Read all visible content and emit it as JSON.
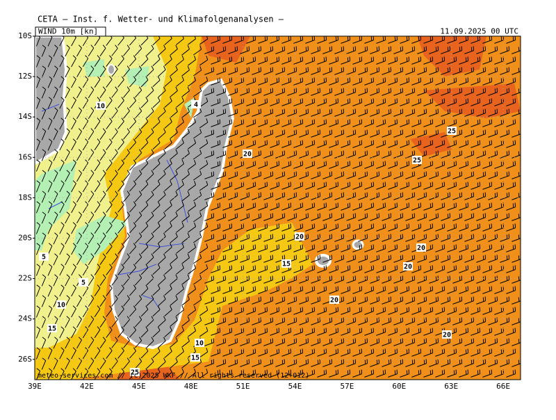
{
  "header": {
    "title": "CETA — Inst. f. Wetter- und Klimafolgenanalysen —",
    "field": "WIND 10m [kn]",
    "valid_time": "11.09.2025 00 UTC"
  },
  "map": {
    "lat_labels": [
      "10S",
      "12S",
      "14S",
      "16S",
      "18S",
      "20S",
      "22S",
      "24S",
      "26S"
    ],
    "lon_labels": [
      "39E",
      "42E",
      "45E",
      "48E",
      "51E",
      "54E",
      "57E",
      "60E",
      "63E",
      "66E"
    ],
    "contour_labels": [
      "10",
      "25",
      "25",
      "20",
      "20",
      "15",
      "20",
      "20",
      "20",
      "20",
      "10",
      "15",
      "5",
      "5",
      "10",
      "15",
      "25",
      "4"
    ]
  },
  "footer": "meteo-services.com // (c)2025 WKF // All rights reserved (12+012)"
}
